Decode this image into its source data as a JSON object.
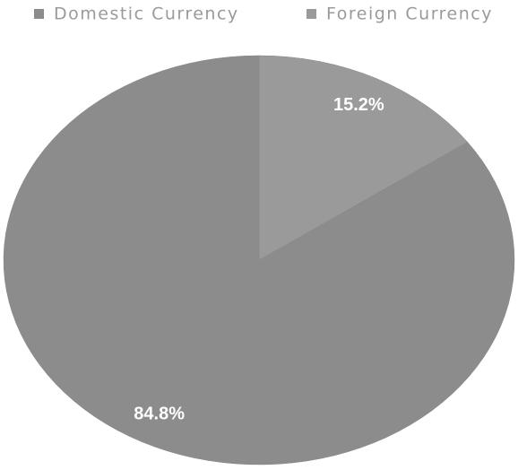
{
  "chart_data": {
    "type": "pie",
    "categories": [
      "Domestic Currency",
      "Foreign Currency"
    ],
    "values": [
      84.8,
      15.2
    ],
    "value_labels": [
      "84.8%",
      "15.2%"
    ],
    "colors": [
      "#8c8c8c",
      "#9a9a9a"
    ],
    "legend": "top"
  }
}
